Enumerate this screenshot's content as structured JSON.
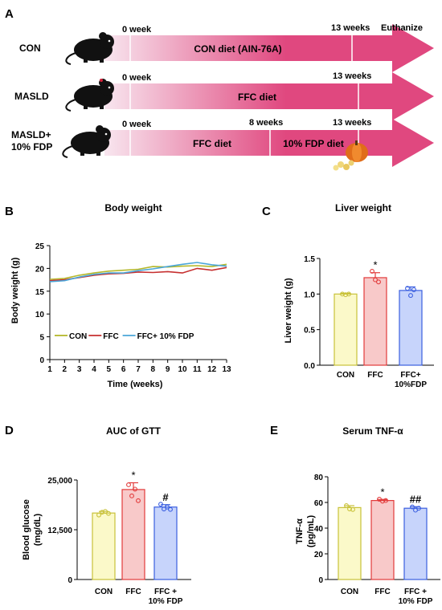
{
  "colors": {
    "arrow_light": "#f8e6ef",
    "arrow_dark": "#e0487f",
    "con": "#b5b82b",
    "ffc": "#c62f2f",
    "fdp": "#4aa6d8",
    "bar_con_fill": "#fbf9c9",
    "bar_con_edge": "#c9c23a",
    "bar_ffc_fill": "#f8c9c9",
    "bar_ffc_edge": "#e23b3b",
    "bar_fdp_fill": "#c7d4fb",
    "bar_fdp_edge": "#3b5fe0"
  },
  "panel_a": {
    "label": "A",
    "euthanize": "Euthanize",
    "rows": [
      {
        "group": "CON",
        "start": "0 week",
        "end": "13 weeks",
        "diet": "CON diet (AIN-76A)"
      },
      {
        "group": "MASLD",
        "start": "0 week",
        "end": "13 weeks",
        "diet": "FFC diet"
      },
      {
        "group": "MASLD+",
        "group_line2": "10% FDP",
        "start": "0 week",
        "mid": "8 weeks",
        "end": "13 weeks",
        "diet": "FFC diet",
        "diet2": "10% FDP diet"
      }
    ]
  },
  "chart_data": [
    {
      "panel": "B",
      "type": "line",
      "title": "Body  weight",
      "xlabel": "Time (weeks)",
      "ylabel": "Body weight (g)",
      "x": [
        1,
        2,
        3,
        4,
        5,
        6,
        7,
        8,
        9,
        10,
        11,
        12,
        13
      ],
      "xticks": [
        "1",
        "2",
        "3",
        "4",
        "5",
        "6",
        "7",
        "8",
        "9",
        "10",
        "11",
        "12",
        "13"
      ],
      "ylim": [
        0,
        25
      ],
      "yticks": [
        "0",
        "5",
        "10",
        "15",
        "20",
        "25"
      ],
      "legend": "bottom-left",
      "series": [
        {
          "name": "CON",
          "color": "#b5b82b",
          "values": [
            17.6,
            17.8,
            18.5,
            19.0,
            19.4,
            19.6,
            19.8,
            20.4,
            20.3,
            20.5,
            20.6,
            20.4,
            20.9
          ]
        },
        {
          "name": "FFC",
          "color": "#c62f2f",
          "values": [
            17.3,
            17.5,
            18.0,
            18.5,
            18.8,
            18.9,
            19.2,
            19.1,
            19.3,
            19.0,
            20.0,
            19.6,
            20.2
          ]
        },
        {
          "name": "FFC+  10% FDP",
          "color": "#4aa6d8",
          "values": [
            17.1,
            17.3,
            18.1,
            18.7,
            19.0,
            19.0,
            19.5,
            19.9,
            20.4,
            20.9,
            21.3,
            20.8,
            20.5
          ]
        }
      ]
    },
    {
      "panel": "C",
      "type": "bar",
      "title": "Liver  weight",
      "ylabel": "Liver weight (g)",
      "categories": [
        "CON",
        "FFC",
        "FFC+"
      ],
      "category_line2": [
        "",
        "",
        "10%FDP"
      ],
      "values": [
        1.0,
        1.23,
        1.05
      ],
      "errors": [
        0.01,
        0.07,
        0.05
      ],
      "points": [
        [
          1.0,
          0.99,
          1.0
        ],
        [
          1.32,
          1.2,
          1.17
        ],
        [
          1.08,
          0.98,
          1.06
        ]
      ],
      "ylim": [
        0.0,
        1.5
      ],
      "yticks": [
        "0.0",
        "0.5",
        "1.0",
        "1.5"
      ],
      "annotations": [
        "",
        "*",
        ""
      ]
    },
    {
      "panel": "D",
      "type": "bar",
      "title": "AUC of GTT",
      "ylabel": "Blood glucose",
      "ylabel2": "(mg/dL)",
      "categories": [
        "CON",
        "FFC",
        "FFC +"
      ],
      "category_line2": [
        "",
        "",
        "10% FDP"
      ],
      "values": [
        16700,
        22600,
        18200
      ],
      "errors": [
        400,
        1700,
        600
      ],
      "points": [
        [
          16200,
          16900,
          17100,
          16600
        ],
        [
          23800,
          21000,
          22700,
          19800
        ],
        [
          18900,
          17700,
          18200,
          17600
        ]
      ],
      "ylim": [
        0,
        25000
      ],
      "yticks": [
        "0",
        "12,500",
        "25,000"
      ],
      "annotations": [
        "",
        "*",
        "#"
      ]
    },
    {
      "panel": "E",
      "type": "bar",
      "title": "Serum TNF-α",
      "ylabel": "TNF-α",
      "ylabel2": "(pg/mL)",
      "categories": [
        "CON",
        "FFC",
        "FFC +"
      ],
      "category_line2": [
        "",
        "",
        "10% FDP"
      ],
      "values": [
        56,
        61.5,
        55.5
      ],
      "errors": [
        1.5,
        0.8,
        1.2
      ],
      "points": [
        [
          57.5,
          55,
          54.5
        ],
        [
          62.5,
          61,
          61.5
        ],
        [
          56.5,
          54,
          55.5
        ]
      ],
      "ylim": [
        0,
        80
      ],
      "yticks": [
        "0",
        "20",
        "40",
        "60",
        "80"
      ],
      "annotations": [
        "",
        "*",
        "##"
      ]
    }
  ]
}
